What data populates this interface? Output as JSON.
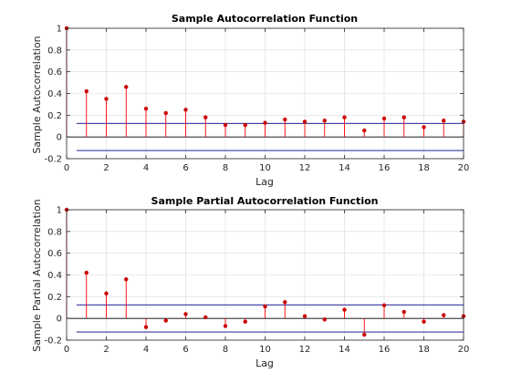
{
  "colors": {
    "stem": "#ff0000",
    "marker": "#cc0000",
    "bounds": "#00008b",
    "zero_line": "#000000",
    "grid": "#d9d9d9",
    "axis": "#262626"
  },
  "chart_data": [
    {
      "type": "stem",
      "title": "Sample Autocorrelation Function",
      "xlabel": "Lag",
      "ylabel": "Sample Autocorrelation",
      "xlim": [
        0,
        20
      ],
      "ylim": [
        -0.2,
        1
      ],
      "xticks": [
        0,
        2,
        4,
        6,
        8,
        10,
        12,
        14,
        16,
        18,
        20
      ],
      "yticks": [
        -0.2,
        0,
        0.2,
        0.4,
        0.6,
        0.8,
        1
      ],
      "ytick_labels": [
        "-0.2",
        "0",
        "0.2",
        "0.4",
        "0.6",
        "0.8",
        "1"
      ],
      "grid": true,
      "lags": [
        0,
        1,
        2,
        3,
        4,
        5,
        6,
        7,
        8,
        9,
        10,
        11,
        12,
        13,
        14,
        15,
        16,
        17,
        18,
        19,
        20
      ],
      "values": [
        1.0,
        0.42,
        0.35,
        0.46,
        0.26,
        0.22,
        0.25,
        0.18,
        0.11,
        0.11,
        0.13,
        0.16,
        0.14,
        0.15,
        0.18,
        0.06,
        0.17,
        0.18,
        0.09,
        0.15,
        0.14
      ],
      "confidence_bounds": [
        0.125,
        -0.125
      ]
    },
    {
      "type": "stem",
      "title": "Sample Partial Autocorrelation Function",
      "xlabel": "Lag",
      "ylabel": "Sample Partial Autocorrelation",
      "xlim": [
        0,
        20
      ],
      "ylim": [
        -0.2,
        1
      ],
      "xticks": [
        0,
        2,
        4,
        6,
        8,
        10,
        12,
        14,
        16,
        18,
        20
      ],
      "yticks": [
        -0.2,
        0,
        0.2,
        0.4,
        0.6,
        0.8,
        1
      ],
      "ytick_labels": [
        "-0.2",
        "0",
        "0.2",
        "0.4",
        "0.6",
        "0.8",
        "1"
      ],
      "grid": true,
      "lags": [
        0,
        1,
        2,
        3,
        4,
        5,
        6,
        7,
        8,
        9,
        10,
        11,
        12,
        13,
        14,
        15,
        16,
        17,
        18,
        19,
        20
      ],
      "values": [
        1.0,
        0.42,
        0.23,
        0.36,
        -0.08,
        -0.02,
        0.04,
        0.01,
        -0.07,
        -0.03,
        0.11,
        0.15,
        0.02,
        -0.01,
        0.08,
        -0.15,
        0.12,
        0.06,
        -0.03,
        0.03,
        0.02
      ],
      "confidence_bounds": [
        0.125,
        -0.125
      ]
    }
  ]
}
